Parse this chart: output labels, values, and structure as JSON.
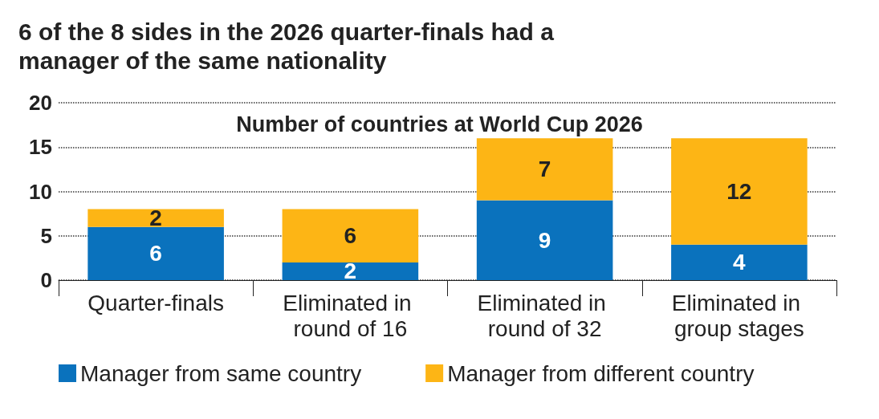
{
  "chart_data": {
    "type": "bar",
    "title": "6 of the 8 sides in the 2026 quarter-finals had a manager of the same nationality",
    "subtitle": "Number of countries at World Cup 2026",
    "categories": [
      "Quarter-finals",
      "Eliminated in round of 16",
      "Eliminated in round of 32",
      "Eliminated in group stages"
    ],
    "series": [
      {
        "name": "Manager from same country",
        "color": "#0a72bd",
        "values": [
          6,
          2,
          9,
          4
        ]
      },
      {
        "name": "Manager from different country",
        "color": "#fdb515",
        "values": [
          2,
          6,
          7,
          12
        ]
      }
    ],
    "stacked": true,
    "ylim": [
      0,
      20
    ],
    "yticks": [
      0,
      5,
      10,
      15,
      20
    ],
    "grid": "y",
    "legend": "bottom left",
    "data_labels": true
  }
}
